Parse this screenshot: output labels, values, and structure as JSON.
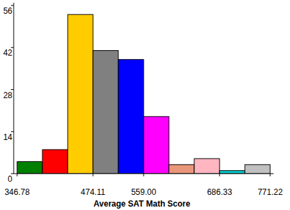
{
  "chart_data": {
    "type": "histogram",
    "x_label": "Average SAT Math Score",
    "bins": [
      346.78,
      389.22,
      431.67,
      474.11,
      516.56,
      559.0,
      601.44,
      643.89,
      686.33,
      728.78,
      771.22
    ],
    "values": [
      4,
      8,
      53,
      41,
      38,
      19,
      3,
      5,
      1,
      3
    ],
    "colors": [
      "#008000",
      "#ff0000",
      "#ffcc00",
      "#808080",
      "#0000ff",
      "#ff00ff",
      "#e9967a",
      "#ffb6c1",
      "#00cccc",
      "#c0c0c0"
    ],
    "xlim": [
      346.78,
      771.22
    ],
    "xticks": [
      346.78,
      474.11,
      {
        "value": 559,
        "label": "559.00"
      },
      686.33,
      771.22
    ],
    "ylim": [
      0,
      56
    ],
    "yticks": [
      0,
      14,
      28,
      42,
      56
    ]
  }
}
